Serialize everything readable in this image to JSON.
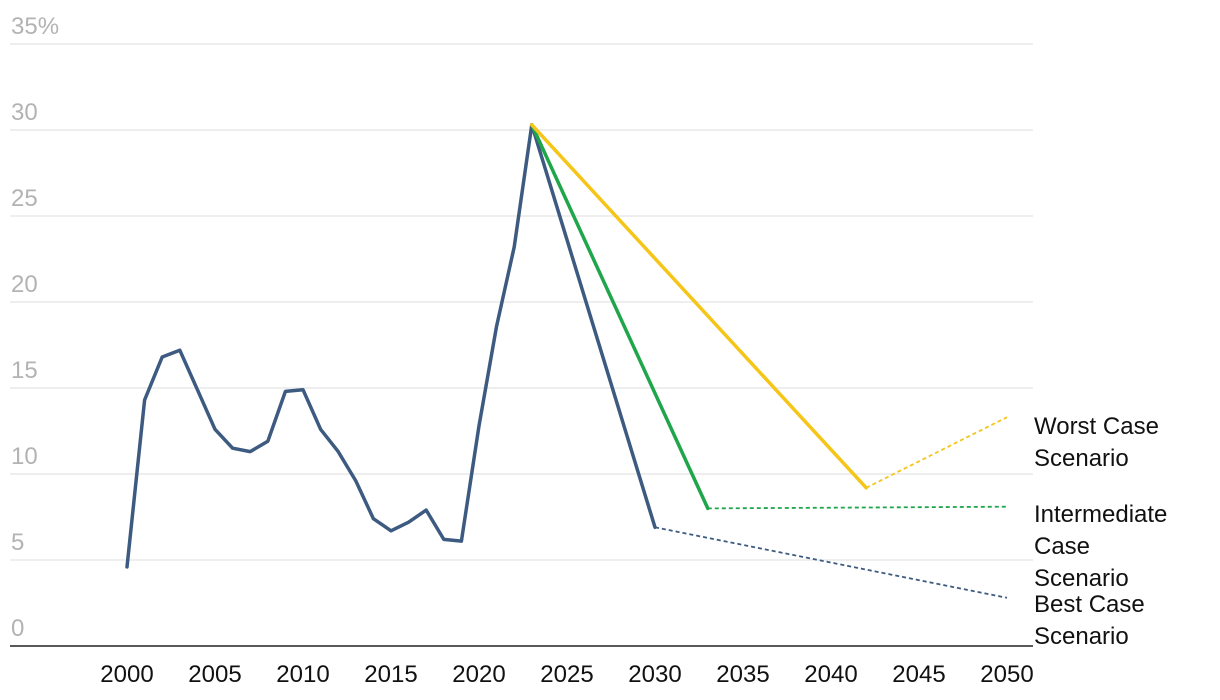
{
  "chart_data": {
    "type": "line",
    "title": "",
    "xlabel": "",
    "ylabel": "",
    "y_unit": "%",
    "xlim": [
      1995,
      2052
    ],
    "ylim": [
      0,
      35
    ],
    "y_ticks": [
      {
        "value": 0,
        "label": "0"
      },
      {
        "value": 5,
        "label": "5"
      },
      {
        "value": 10,
        "label": "10"
      },
      {
        "value": 15,
        "label": "15"
      },
      {
        "value": 20,
        "label": "20"
      },
      {
        "value": 25,
        "label": "25"
      },
      {
        "value": 30,
        "label": "30"
      },
      {
        "value": 35,
        "label": "35%"
      }
    ],
    "x_ticks": [
      {
        "value": 2000,
        "label": "2000"
      },
      {
        "value": 2005,
        "label": "2005"
      },
      {
        "value": 2010,
        "label": "2010"
      },
      {
        "value": 2015,
        "label": "2015"
      },
      {
        "value": 2020,
        "label": "2020"
      },
      {
        "value": 2025,
        "label": "2025"
      },
      {
        "value": 2030,
        "label": "2030"
      },
      {
        "value": 2035,
        "label": "2035"
      },
      {
        "value": 2040,
        "label": "2040"
      },
      {
        "value": 2045,
        "label": "2045"
      },
      {
        "value": 2050,
        "label": "2050"
      }
    ],
    "grid": true,
    "legend": "labels at line ends (right)",
    "series": [
      {
        "key": "historical",
        "color": "#3d5a80",
        "style": "solid",
        "points": [
          [
            2000,
            4.6
          ],
          [
            2001,
            14.3
          ],
          [
            2002,
            16.8
          ],
          [
            2003,
            17.2
          ],
          [
            2004,
            14.9
          ],
          [
            2005,
            12.6
          ],
          [
            2006,
            11.5
          ],
          [
            2007,
            11.3
          ],
          [
            2008,
            11.9
          ],
          [
            2009,
            14.8
          ],
          [
            2010,
            14.9
          ],
          [
            2011,
            12.6
          ],
          [
            2012,
            11.3
          ],
          [
            2013,
            9.6
          ],
          [
            2014,
            7.4
          ],
          [
            2015,
            6.7
          ],
          [
            2016,
            7.2
          ],
          [
            2017,
            7.9
          ],
          [
            2018,
            6.2
          ],
          [
            2019,
            6.1
          ],
          [
            2020,
            12.8
          ],
          [
            2021,
            18.6
          ],
          [
            2022,
            23.2
          ],
          [
            2023,
            30.3
          ]
        ]
      },
      {
        "key": "best-projection",
        "color": "#3d5a80",
        "style": "solid",
        "points": [
          [
            2023,
            30.3
          ],
          [
            2030,
            6.9
          ]
        ]
      },
      {
        "key": "best-extension",
        "color": "#3d5a80",
        "style": "dotted",
        "points": [
          [
            2030,
            6.9
          ],
          [
            2050,
            2.8
          ]
        ]
      },
      {
        "key": "intermediate-projection",
        "color": "#1fa64a",
        "style": "solid",
        "points": [
          [
            2023,
            30.3
          ],
          [
            2033,
            8.0
          ]
        ]
      },
      {
        "key": "intermediate-extension",
        "color": "#1fa64a",
        "style": "dotted",
        "points": [
          [
            2033,
            8.0
          ],
          [
            2050,
            8.1
          ]
        ]
      },
      {
        "key": "worst-projection",
        "color": "#f5c518",
        "style": "solid",
        "points": [
          [
            2023,
            30.3
          ],
          [
            2042,
            9.2
          ]
        ]
      },
      {
        "key": "worst-extension",
        "color": "#f5c518",
        "style": "dotted",
        "points": [
          [
            2042,
            9.2
          ],
          [
            2050,
            13.3
          ]
        ]
      }
    ],
    "annotations": [
      {
        "key": "worst",
        "lines": [
          "Worst Case",
          "Scenario"
        ]
      },
      {
        "key": "intermediate",
        "lines": [
          "Intermediate",
          "Case",
          "Scenario"
        ]
      },
      {
        "key": "best",
        "lines": [
          "Best Case",
          "Scenario"
        ]
      }
    ]
  }
}
